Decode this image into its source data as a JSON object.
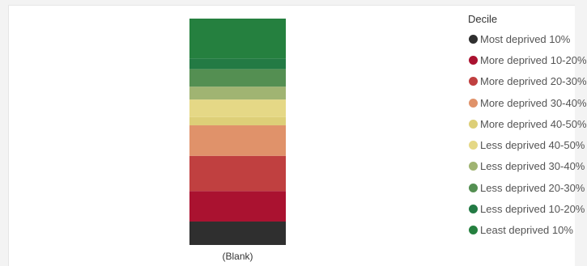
{
  "chart_data": {
    "type": "bar",
    "stacked": true,
    "normalized": true,
    "categories": [
      "(Blank)"
    ],
    "legend_title": "Decile",
    "legend_position": "right",
    "series": [
      {
        "name": "Most deprived 10%",
        "color": "#2f2f2f",
        "values": [
          10
        ]
      },
      {
        "name": "More deprived 10-20%",
        "color": "#aa1230",
        "values": [
          13
        ]
      },
      {
        "name": "More deprived 20-30%",
        "color": "#c04040",
        "values": [
          15
        ]
      },
      {
        "name": "More deprived 30-40%",
        "color": "#e0926a",
        "values": [
          13
        ]
      },
      {
        "name": "More deprived 40-50%",
        "color": "#ddcf78",
        "values": [
          3.5
        ]
      },
      {
        "name": "Less deprived 40-50%",
        "color": "#e5d886",
        "values": [
          7.5
        ]
      },
      {
        "name": "Less deprived 30-40%",
        "color": "#a0b472",
        "values": [
          5.5
        ]
      },
      {
        "name": "Less deprived 20-30%",
        "color": "#548f52",
        "values": [
          7.5
        ]
      },
      {
        "name": "Less deprived 10-20%",
        "color": "#237a44",
        "values": [
          4.5
        ]
      },
      {
        "name": "Least deprived 10%",
        "color": "#25803f",
        "values": [
          17
        ]
      }
    ],
    "grid": false
  }
}
